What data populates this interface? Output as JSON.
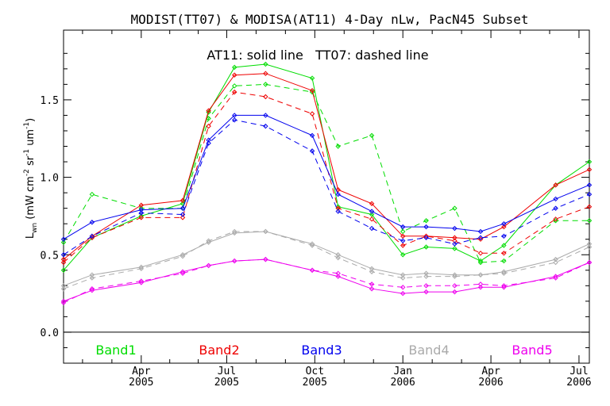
{
  "chart_data": {
    "type": "line",
    "title": "MODIST(TT07) & MODISA(AT11) 4-Day nLw, PacN45 Subset",
    "annotation": "AT11: solid line   TT07: dashed line",
    "ylabel_main": "L",
    "ylabel_sub": "wn",
    "ylabel_units": "(mW cm",
    "ylabel_units_tail": " sr",
    "ylabel_units_tail2": " um",
    "ylabel_close": ")",
    "ylabel_exp1": "-2",
    "ylabel_exp2": "-1",
    "ylabel_exp3": "-1",
    "ylim": [
      -0.2,
      1.95
    ],
    "xlim": [
      0,
      20.3
    ],
    "yticks": [
      "0.0",
      "0.5",
      "1.0",
      "1.5"
    ],
    "xticks": [
      {
        "x": 3.0,
        "line1": "Apr",
        "line2": "2005"
      },
      {
        "x": 6.3,
        "line1": "Jul",
        "line2": "2005"
      },
      {
        "x": 9.7,
        "line1": "Oct",
        "line2": "2005"
      },
      {
        "x": 13.1,
        "line1": "Jan",
        "line2": "2006"
      },
      {
        "x": 16.5,
        "line1": "Apr",
        "line2": "2006"
      },
      {
        "x": 19.9,
        "line1": "Jul",
        "line2": "2006"
      }
    ],
    "reference_line_y": 0.0,
    "legend_position": "bottom",
    "series": [
      {
        "name": "Band1",
        "color": "#00dd00",
        "sensor": "AT11",
        "style": "solid",
        "x": [
          0,
          1.1,
          3.0,
          4.6,
          5.6,
          6.6,
          7.8,
          9.6,
          10.6,
          11.9,
          13.1,
          14.0,
          15.1,
          16.1,
          17.0,
          19.0,
          20.3
        ],
        "y": [
          0.4,
          0.61,
          0.75,
          0.83,
          1.42,
          1.71,
          1.73,
          1.64,
          0.81,
          0.76,
          0.5,
          0.55,
          0.54,
          0.46,
          0.56,
          0.95,
          1.1
        ]
      },
      {
        "name": "Band1",
        "color": "#00dd00",
        "sensor": "TT07",
        "style": "dashed",
        "x": [
          0,
          1.1,
          3.0,
          4.6,
          5.6,
          6.6,
          7.8,
          9.6,
          10.6,
          11.9,
          13.1,
          14.0,
          15.1,
          16.1,
          17.0,
          19.0,
          20.3
        ],
        "y": [
          0.58,
          0.89,
          0.8,
          0.8,
          1.38,
          1.59,
          1.6,
          1.55,
          1.2,
          1.27,
          0.65,
          0.72,
          0.8,
          0.45,
          0.46,
          0.72,
          0.72
        ]
      },
      {
        "name": "Band2",
        "color": "#ee0000",
        "sensor": "AT11",
        "style": "solid",
        "x": [
          0,
          1.1,
          3.0,
          4.6,
          5.6,
          6.6,
          7.8,
          9.6,
          10.6,
          11.9,
          13.1,
          14.0,
          15.1,
          16.1,
          17.0,
          19.0,
          20.3
        ],
        "y": [
          0.47,
          0.62,
          0.82,
          0.85,
          1.43,
          1.66,
          1.67,
          1.56,
          0.92,
          0.83,
          0.62,
          0.62,
          0.61,
          0.6,
          0.68,
          0.95,
          1.05
        ]
      },
      {
        "name": "Band2",
        "color": "#ee0000",
        "sensor": "TT07",
        "style": "dashed",
        "x": [
          0,
          1.1,
          3.0,
          4.6,
          5.6,
          6.6,
          7.8,
          9.6,
          10.6,
          11.9,
          13.1,
          14.0,
          15.1,
          16.1,
          17.0,
          19.0,
          20.3
        ],
        "y": [
          0.45,
          0.61,
          0.74,
          0.74,
          1.33,
          1.55,
          1.52,
          1.41,
          0.8,
          0.73,
          0.56,
          0.62,
          0.59,
          0.51,
          0.51,
          0.73,
          0.81
        ]
      },
      {
        "name": "Band3",
        "color": "#0000ee",
        "sensor": "AT11",
        "style": "solid",
        "x": [
          0,
          1.1,
          3.0,
          4.6,
          5.6,
          6.6,
          7.8,
          9.6,
          10.6,
          11.9,
          13.1,
          14.0,
          15.1,
          16.1,
          17.0,
          19.0,
          20.3
        ],
        "y": [
          0.6,
          0.71,
          0.79,
          0.8,
          1.24,
          1.4,
          1.4,
          1.27,
          0.89,
          0.78,
          0.68,
          0.68,
          0.67,
          0.65,
          0.7,
          0.86,
          0.95
        ]
      },
      {
        "name": "Band3",
        "color": "#0000ee",
        "sensor": "TT07",
        "style": "dashed",
        "x": [
          0,
          1.1,
          3.0,
          4.6,
          5.6,
          6.6,
          7.8,
          9.6,
          10.6,
          11.9,
          13.1,
          14.0,
          15.1,
          16.1,
          17.0,
          19.0,
          20.3
        ],
        "y": [
          0.5,
          0.62,
          0.77,
          0.76,
          1.22,
          1.37,
          1.33,
          1.17,
          0.78,
          0.67,
          0.59,
          0.61,
          0.57,
          0.61,
          0.62,
          0.8,
          0.89
        ]
      },
      {
        "name": "Band4",
        "color": "#aaaaaa",
        "sensor": "AT11",
        "style": "solid",
        "x": [
          0,
          1.1,
          3.0,
          4.6,
          5.6,
          6.6,
          7.8,
          9.6,
          10.6,
          11.9,
          13.1,
          14.0,
          15.1,
          16.1,
          17.0,
          19.0,
          20.3
        ],
        "y": [
          0.3,
          0.37,
          0.42,
          0.5,
          0.58,
          0.64,
          0.65,
          0.57,
          0.5,
          0.41,
          0.37,
          0.38,
          0.37,
          0.37,
          0.39,
          0.47,
          0.57
        ]
      },
      {
        "name": "Band4",
        "color": "#aaaaaa",
        "sensor": "TT07",
        "style": "dashed",
        "x": [
          0,
          1.1,
          3.0,
          4.6,
          5.6,
          6.6,
          7.8,
          9.6,
          10.6,
          11.9,
          13.1,
          14.0,
          15.1,
          16.1,
          17.0,
          19.0,
          20.3
        ],
        "y": [
          0.28,
          0.35,
          0.41,
          0.49,
          0.59,
          0.65,
          0.65,
          0.56,
          0.48,
          0.39,
          0.35,
          0.36,
          0.36,
          0.37,
          0.38,
          0.45,
          0.55
        ]
      },
      {
        "name": "Band5",
        "color": "#ee00ee",
        "sensor": "AT11",
        "style": "solid",
        "x": [
          0,
          1.1,
          3.0,
          4.6,
          5.6,
          6.6,
          7.8,
          9.6,
          10.6,
          11.9,
          13.1,
          14.0,
          15.1,
          16.1,
          17.0,
          19.0,
          20.3
        ],
        "y": [
          0.2,
          0.27,
          0.32,
          0.39,
          0.43,
          0.46,
          0.47,
          0.4,
          0.36,
          0.28,
          0.25,
          0.26,
          0.26,
          0.29,
          0.29,
          0.36,
          0.45
        ]
      },
      {
        "name": "Band5",
        "color": "#ee00ee",
        "sensor": "TT07",
        "style": "dashed",
        "x": [
          0,
          1.1,
          3.0,
          4.6,
          5.6,
          6.6,
          7.8,
          9.6,
          10.6,
          11.9,
          13.1,
          14.0,
          15.1,
          16.1,
          17.0,
          19.0,
          20.3
        ],
        "y": [
          0.19,
          0.28,
          0.33,
          0.38,
          0.43,
          0.46,
          0.47,
          0.4,
          0.38,
          0.31,
          0.29,
          0.3,
          0.3,
          0.31,
          0.3,
          0.35,
          0.45
        ]
      }
    ],
    "legend": [
      {
        "label": "Band1",
        "color": "#00dd00"
      },
      {
        "label": "Band2",
        "color": "#ee0000"
      },
      {
        "label": "Band3",
        "color": "#0000ee"
      },
      {
        "label": "Band4",
        "color": "#aaaaaa"
      },
      {
        "label": "Band5",
        "color": "#ee00ee"
      }
    ]
  }
}
